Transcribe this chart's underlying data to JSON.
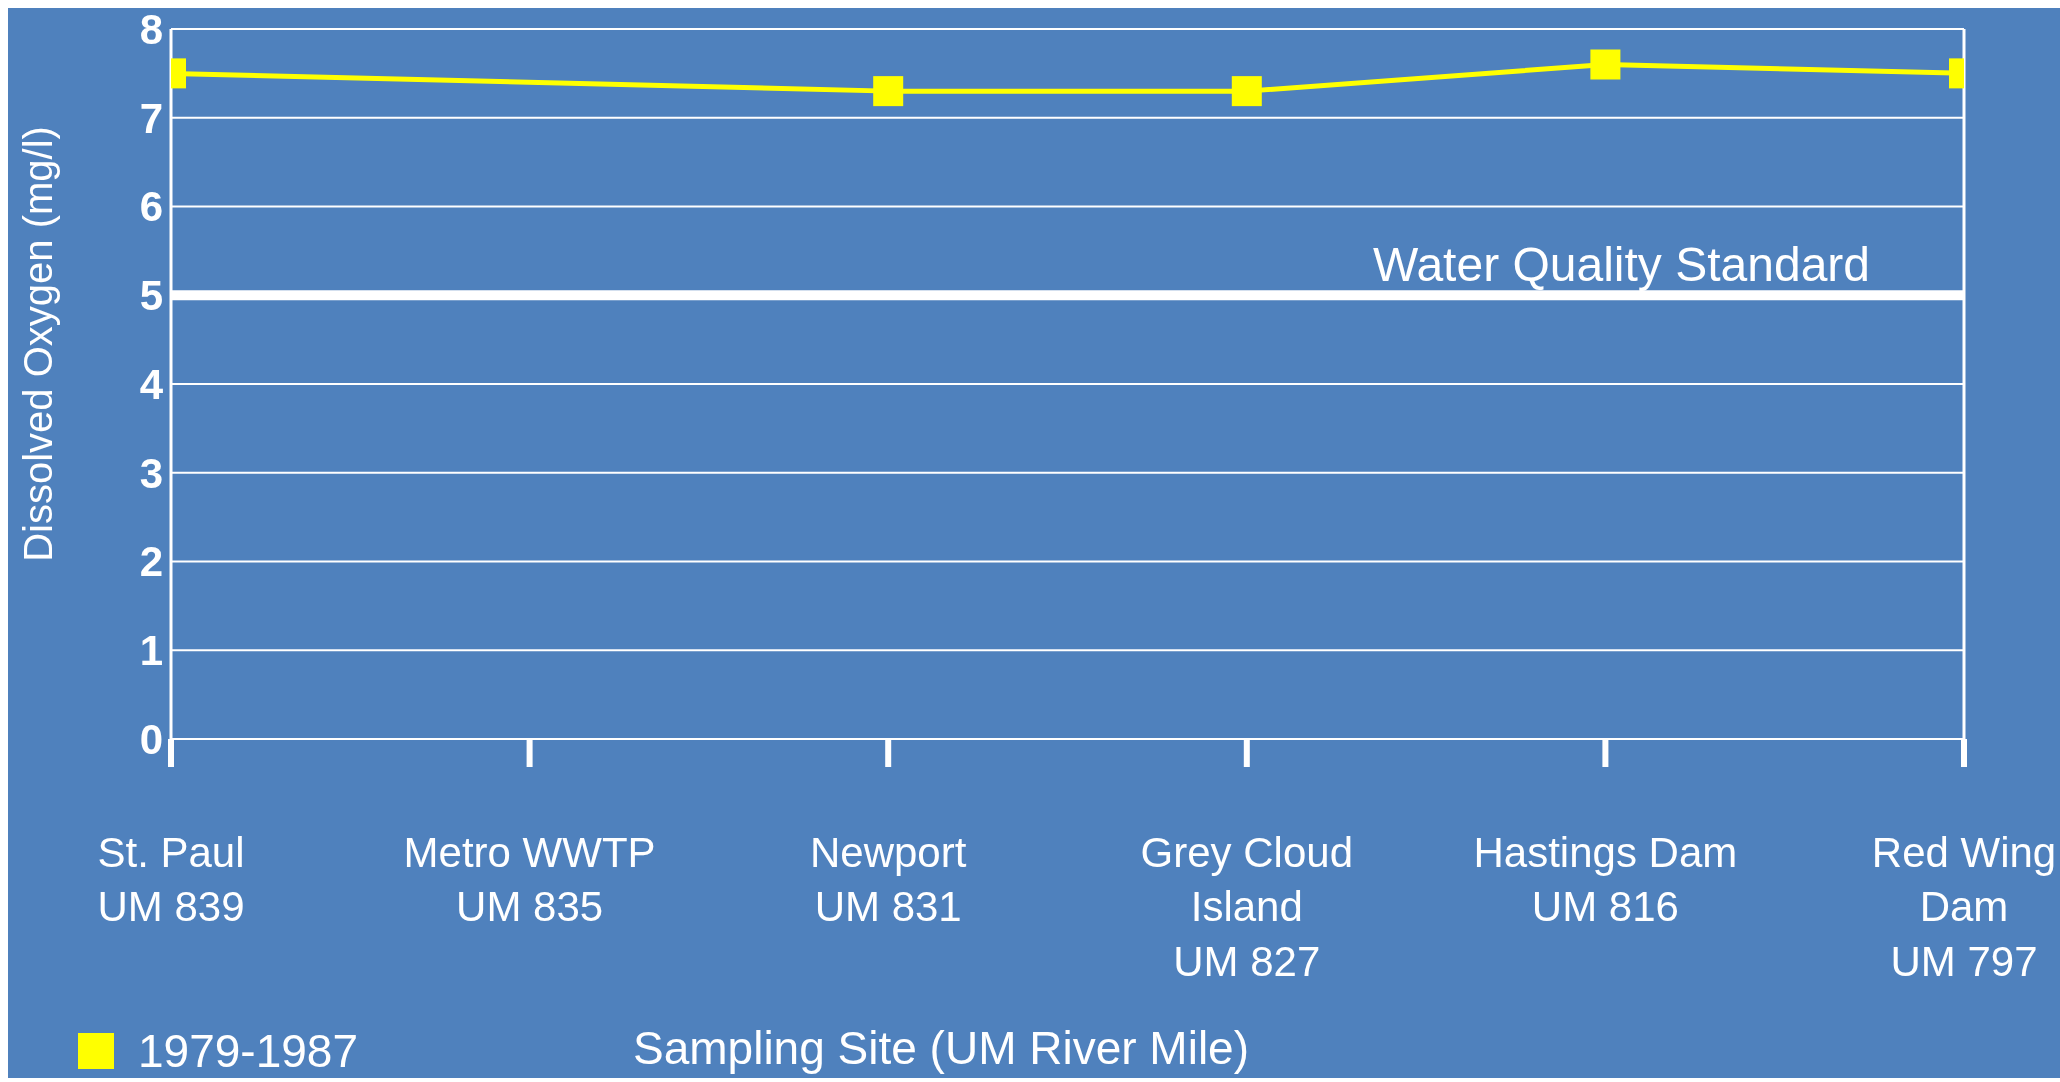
{
  "chart_data": {
    "type": "line",
    "ylabel": "Dissolved Oxygen (mg/l)",
    "xlabel": "Sampling Site (UM River Mile)",
    "categories": [
      "St. Paul\nUM 839",
      "Metro WWTP\nUM 835",
      "Newport\nUM 831",
      "Grey Cloud\nIsland\nUM 827",
      "Hastings Dam\nUM 816",
      "Red Wing\nDam\nUM 797"
    ],
    "series": [
      {
        "name": "1979-1987",
        "color": "#ffff00",
        "values": [
          7.5,
          null,
          7.3,
          7.3,
          7.6,
          7.5
        ]
      }
    ],
    "ylim": [
      0,
      8
    ],
    "yticks": [
      0,
      1,
      2,
      3,
      4,
      5,
      6,
      7,
      8
    ],
    "grid": "y",
    "legend": "bottom left",
    "marker": "square",
    "line_style": "solid",
    "ref_lines": [
      {
        "axis": "y",
        "value": 5,
        "label": "Water Quality Standard",
        "color": "#ffffff"
      }
    ]
  }
}
